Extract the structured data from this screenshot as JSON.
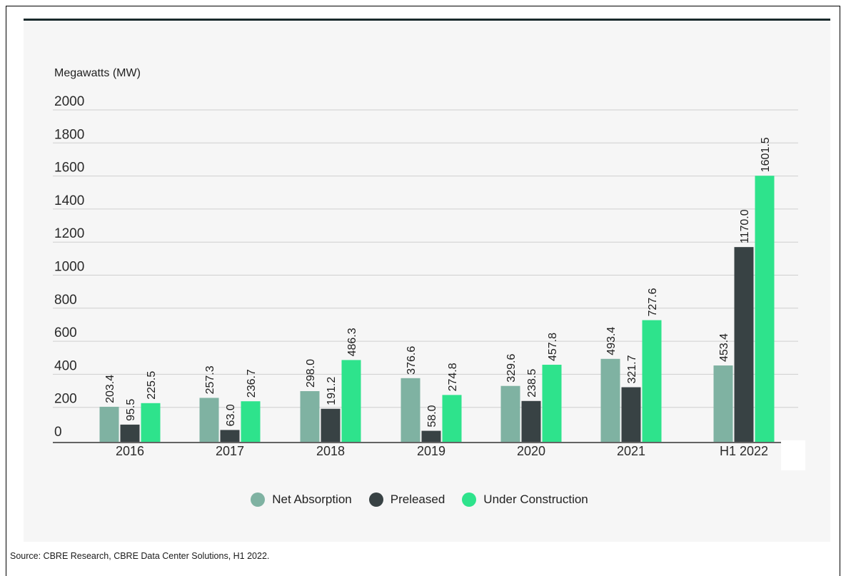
{
  "chart_data": {
    "type": "bar",
    "ylabel": "Megawatts (MW)",
    "ylim": [
      0,
      2000
    ],
    "yticks": [
      0,
      200,
      400,
      600,
      800,
      1000,
      1200,
      1400,
      1600,
      1800,
      2000
    ],
    "grid": true,
    "legend_position": "bottom",
    "categories": [
      "2016",
      "2017",
      "2018",
      "2019",
      "2020",
      "2021",
      "H1 2022"
    ],
    "series": [
      {
        "name": "Net Absorption",
        "color": "#7fb2a2",
        "values": [
          203.4,
          257.3,
          298.0,
          376.6,
          329.6,
          493.4,
          453.4
        ],
        "labels": [
          "203.4",
          "257.3",
          "298.0",
          "376.6",
          "329.6",
          "493.4",
          "453.4"
        ]
      },
      {
        "name": "Preleased",
        "color": "#384244",
        "values": [
          95.5,
          63.0,
          191.2,
          58.0,
          238.5,
          321.7,
          1170.0
        ],
        "labels": [
          "95.5",
          "63.0",
          "191.2",
          "58.0",
          "238.5",
          "321.7",
          "1170.0"
        ]
      },
      {
        "name": "Under Construction",
        "color": "#2ee38c",
        "values": [
          225.5,
          236.7,
          486.3,
          274.8,
          457.8,
          727.6,
          1601.5
        ],
        "labels": [
          "225.5",
          "236.7",
          "486.3",
          "274.8",
          "457.8",
          "727.6",
          "1601.5"
        ]
      }
    ]
  },
  "source": "Source: CBRE Research, CBRE Data Center Solutions, H1 2022."
}
